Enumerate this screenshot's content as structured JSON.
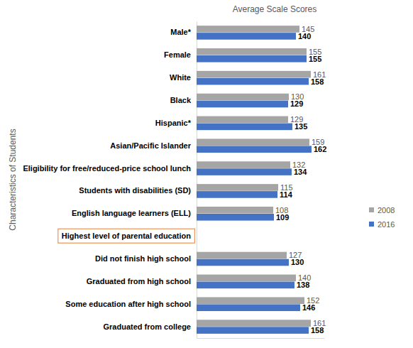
{
  "chart_data": {
    "type": "bar",
    "orientation": "horizontal",
    "title": "Average Scale Scores",
    "y_label": "Characteristics of Students",
    "categories": [
      "Male*",
      "Female",
      "White",
      "Black",
      "Hispanic*",
      "Asian/Pacific Islander",
      "Eligibility for free/reduced-price school lunch",
      "Students with disabilities (SD)",
      "English language learners (ELL)",
      "Highest level of parental education",
      "Did not finish high school",
      "Graduated from high school",
      "Some education after high school",
      "Graduated from college"
    ],
    "series": [
      {
        "name": "2008",
        "color": "#a5a5a5",
        "values": [
          145,
          155,
          161,
          130,
          129,
          159,
          132,
          115,
          108,
          null,
          127,
          140,
          152,
          161
        ]
      },
      {
        "name": "2016",
        "color": "#4472c4",
        "values": [
          140,
          155,
          158,
          129,
          135,
          162,
          134,
          114,
          109,
          null,
          130,
          138,
          146,
          158
        ]
      }
    ],
    "xlim": [
      0,
      180
    ],
    "data_labels": true,
    "tick_labels": "y",
    "legend": "right",
    "grid": false
  }
}
